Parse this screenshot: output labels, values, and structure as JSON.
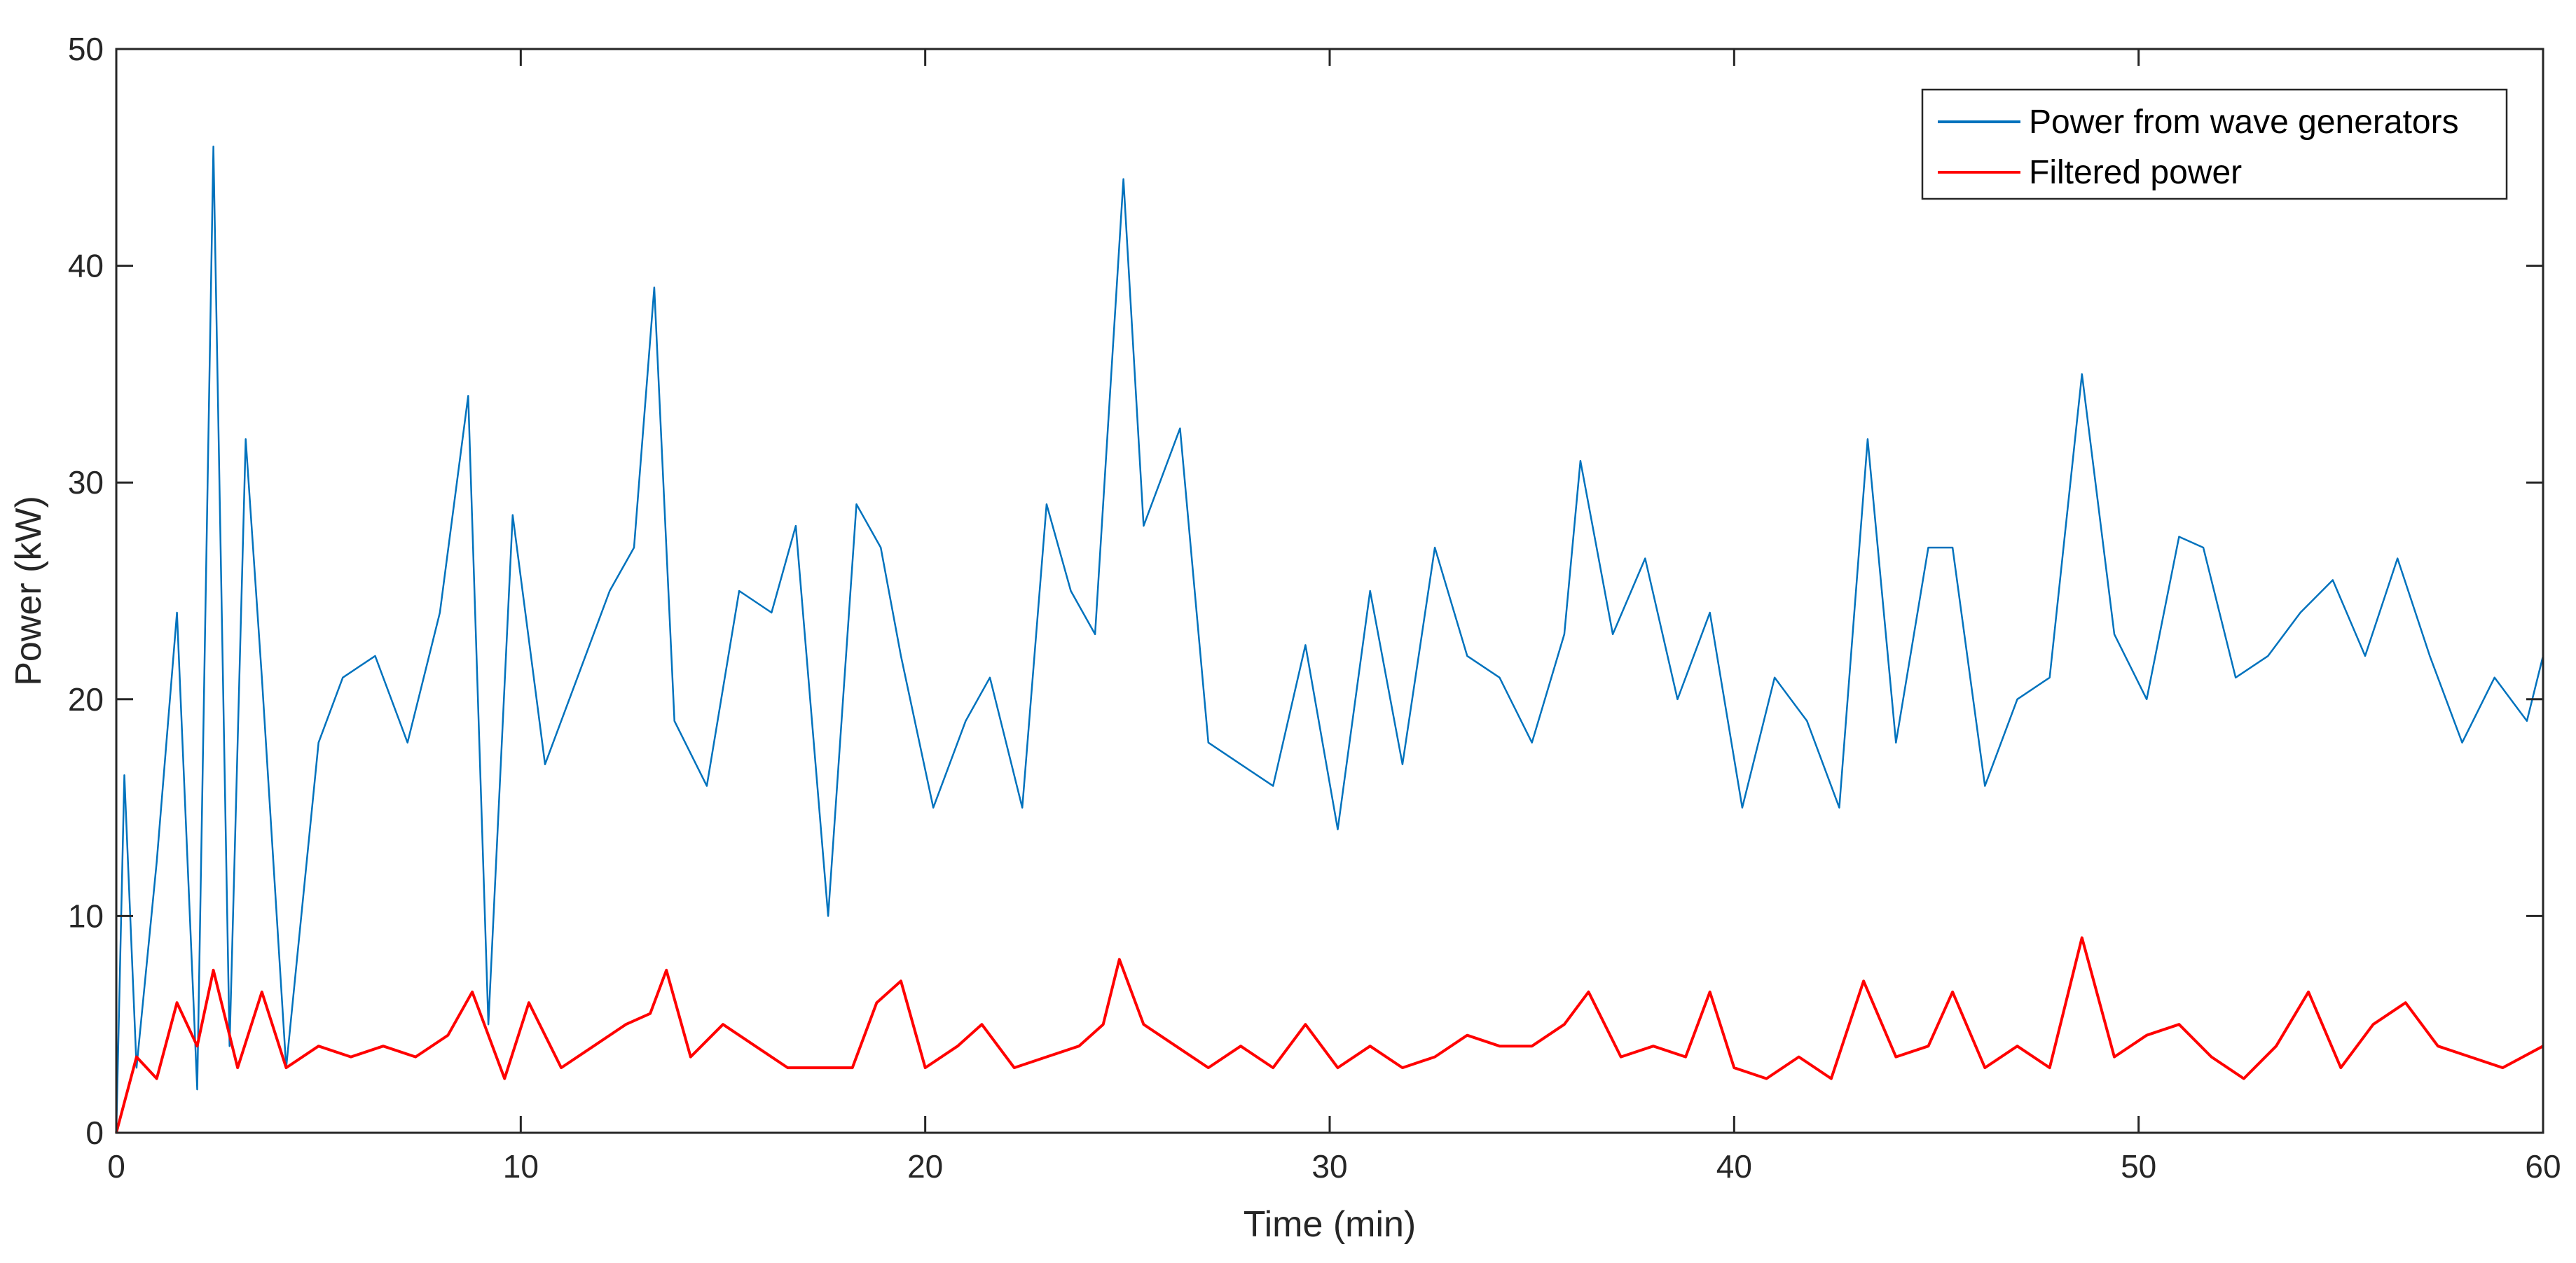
{
  "chart_data": {
    "type": "line",
    "title": "",
    "xlabel": "Time (min)",
    "ylabel": "Power (kW)",
    "xlim": [
      0,
      60
    ],
    "ylim": [
      0,
      50
    ],
    "xticks": [
      0,
      10,
      20,
      30,
      40,
      50,
      60
    ],
    "yticks": [
      0,
      10,
      20,
      30,
      40,
      50
    ],
    "grid": false,
    "legend_position": "top-right",
    "series": [
      {
        "name": "Power from wave generators",
        "color": "#0072BD",
        "x": [
          0,
          0.2,
          0.5,
          1.0,
          1.5,
          2.0,
          2.4,
          2.8,
          3.2,
          3.6,
          4.2,
          5.0,
          5.6,
          6.4,
          7.2,
          8.0,
          8.7,
          9.2,
          9.8,
          10.6,
          11.4,
          12.2,
          12.8,
          13.3,
          13.8,
          14.6,
          15.4,
          16.2,
          16.8,
          17.6,
          18.3,
          18.9,
          19.4,
          20.2,
          21.0,
          21.6,
          22.4,
          23.0,
          23.6,
          24.2,
          24.6,
          24.9,
          25.4,
          26.3,
          27.0,
          27.8,
          28.6,
          29.4,
          30.2,
          31.0,
          31.8,
          32.6,
          33.4,
          34.2,
          35.0,
          35.8,
          36.2,
          37.0,
          37.8,
          38.6,
          39.4,
          40.2,
          41.0,
          41.8,
          42.6,
          43.3,
          44.0,
          44.8,
          45.4,
          46.2,
          47.0,
          47.8,
          48.6,
          49.4,
          50.2,
          51.0,
          51.6,
          52.4,
          53.2,
          54.0,
          54.8,
          55.6,
          56.4,
          57.2,
          58.0,
          58.8,
          59.6,
          60.0
        ],
        "values": [
          0,
          16.5,
          3,
          12.5,
          24,
          2,
          45.5,
          4,
          32,
          21,
          3,
          18,
          21,
          22,
          18,
          24,
          34,
          5,
          28.5,
          17,
          21,
          25,
          27,
          39,
          19,
          16,
          25,
          24,
          28,
          10,
          29,
          27,
          22,
          15,
          19,
          21,
          15,
          29,
          25,
          23,
          35,
          44,
          28,
          32.5,
          18,
          17,
          16,
          22.5,
          14,
          25,
          17,
          27,
          22,
          21,
          18,
          23,
          31,
          23,
          26.5,
          20,
          24,
          15,
          21,
          19,
          15,
          32,
          18,
          27,
          27,
          16,
          20,
          21,
          35,
          23,
          20,
          27.5,
          27,
          21,
          22,
          24,
          25.5,
          22,
          26.5,
          22,
          18,
          21,
          19,
          22
        ]
      },
      {
        "name": "Filtered power",
        "color": "#FF0000",
        "x": [
          0,
          0.5,
          1.0,
          1.5,
          2.0,
          2.4,
          3.0,
          3.6,
          4.2,
          5.0,
          5.8,
          6.6,
          7.4,
          8.2,
          8.8,
          9.6,
          10.2,
          11.0,
          11.8,
          12.6,
          13.2,
          13.6,
          14.2,
          15.0,
          15.8,
          16.6,
          17.4,
          18.2,
          18.8,
          19.4,
          20.0,
          20.8,
          21.4,
          22.2,
          23.0,
          23.8,
          24.4,
          24.8,
          25.4,
          26.2,
          27.0,
          27.8,
          28.6,
          29.4,
          30.2,
          31.0,
          31.8,
          32.6,
          33.4,
          34.2,
          35.0,
          35.8,
          36.4,
          37.2,
          38.0,
          38.8,
          39.4,
          40.0,
          40.8,
          41.6,
          42.4,
          43.2,
          44.0,
          44.8,
          45.4,
          46.2,
          47.0,
          47.8,
          48.6,
          49.4,
          50.2,
          51.0,
          51.8,
          52.6,
          53.4,
          54.2,
          55.0,
          55.8,
          56.6,
          57.4,
          58.2,
          59.0,
          60.0
        ],
        "values": [
          0,
          3.5,
          2.5,
          6,
          4,
          7.5,
          3,
          6.5,
          3,
          4,
          3.5,
          4,
          3.5,
          4.5,
          6.5,
          2.5,
          6,
          3,
          4,
          5,
          5.5,
          7.5,
          3.5,
          5,
          4,
          3,
          3,
          3,
          6,
          7,
          3,
          4,
          5,
          3,
          3.5,
          4,
          5,
          8,
          5,
          4,
          3,
          4,
          3,
          5,
          3,
          4,
          3,
          3.5,
          4.5,
          4,
          4,
          5,
          6.5,
          3.5,
          4,
          3.5,
          6.5,
          3,
          2.5,
          3.5,
          2.5,
          7,
          3.5,
          4,
          6.5,
          3,
          4,
          3,
          9,
          3.5,
          4.5,
          5,
          3.5,
          2.5,
          4,
          6.5,
          3,
          5,
          6,
          4,
          3.5,
          3,
          4
        ]
      }
    ]
  }
}
